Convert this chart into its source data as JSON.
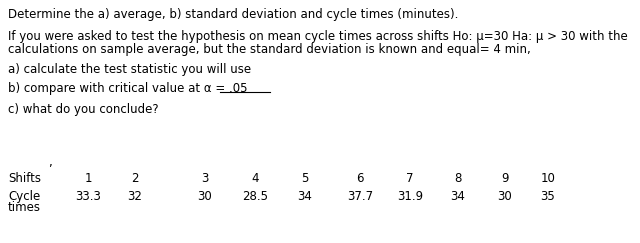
{
  "bg_color": "#ffffff",
  "text_color": "#000000",
  "figsize": [
    6.4,
    2.43
  ],
  "dpi": 100,
  "line1": "Determine the a) average, b) standard deviation and cycle times (minutes).",
  "line2a": "If you were asked to test the hypothesis on mean cycle times across shifts Ho: μ=30 Ha: μ > 30 with the",
  "line2b": "calculations on sample average, but the standard deviation is known and equal= 4 min,",
  "line3": "a) calculate the test statistic you will use",
  "line4": "b) compare with critical value at α = .05",
  "line5": "c) what do you conclude?",
  "fontsize": 8.5,
  "fontfamily": "DejaVu Sans",
  "shifts_label": "Shifts",
  "cycle_label1": "Cycle",
  "cycle_label2": "times",
  "shifts": [
    "1",
    "2",
    "3",
    "4",
    "5",
    "6",
    "7",
    "8",
    "9",
    "10"
  ],
  "cycle_values": [
    "33.3",
    "32",
    "30",
    "28.5",
    "34",
    "37.7",
    "31.9",
    "34",
    "30",
    "35"
  ],
  "comma_char": ","
}
